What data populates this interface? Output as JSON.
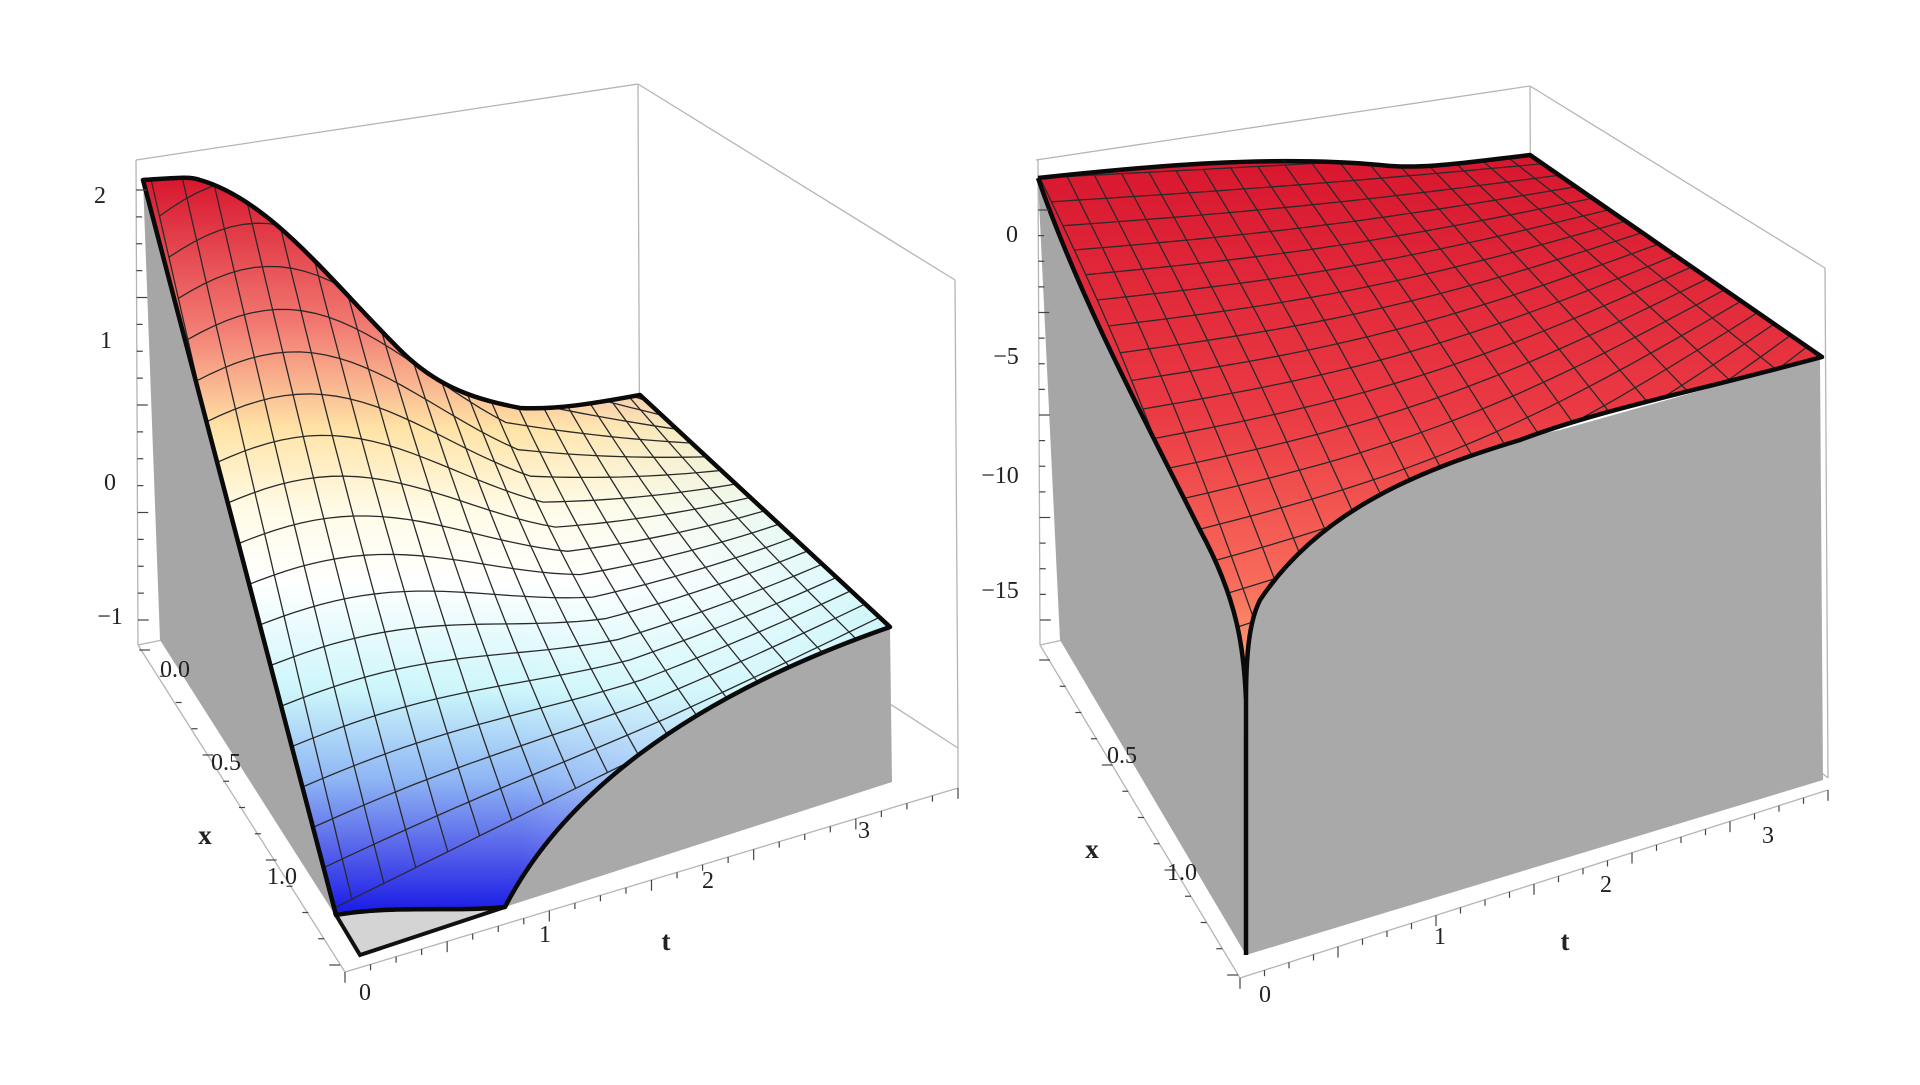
{
  "chart_data": [
    {
      "type": "surface3d",
      "title": "",
      "xlabel": "t",
      "ylabel": "x",
      "zlabel": "",
      "x_ticks": [
        "0",
        "1",
        "2",
        "3"
      ],
      "y_ticks": [
        "0.0",
        "0.5",
        "1.0"
      ],
      "z_ticks": [
        "2",
        "1",
        "0",
        "−1"
      ],
      "x_range": [
        0,
        3.14
      ],
      "y_range": [
        0,
        1.2
      ],
      "z_range": [
        -1.3,
        2.1
      ],
      "colormap": "red-yellow-white-cyan-blue",
      "colors": {
        "high": "#d8172f",
        "mid_high": "#fff0be",
        "mid": "#ffffff",
        "mid_low": "#a8f0f8",
        "low": "#2024e8",
        "wall": "#a9a9a9"
      },
      "mesh": true,
      "box": true
    },
    {
      "type": "surface3d",
      "title": "",
      "xlabel": "t",
      "ylabel": "x",
      "zlabel": "",
      "x_ticks": [
        "0",
        "1",
        "2",
        "3"
      ],
      "y_ticks": [
        "0.5",
        "1.0"
      ],
      "z_ticks": [
        "0",
        "−5",
        "−10",
        "−15"
      ],
      "x_range": [
        0,
        3.14
      ],
      "y_range": [
        0,
        1.2
      ],
      "z_range": [
        -19,
        1
      ],
      "colormap": "red",
      "colors": {
        "high": "#d8172f",
        "low": "#ffb07a",
        "wall": "#a9a9a9"
      },
      "mesh": true,
      "box": true
    }
  ]
}
